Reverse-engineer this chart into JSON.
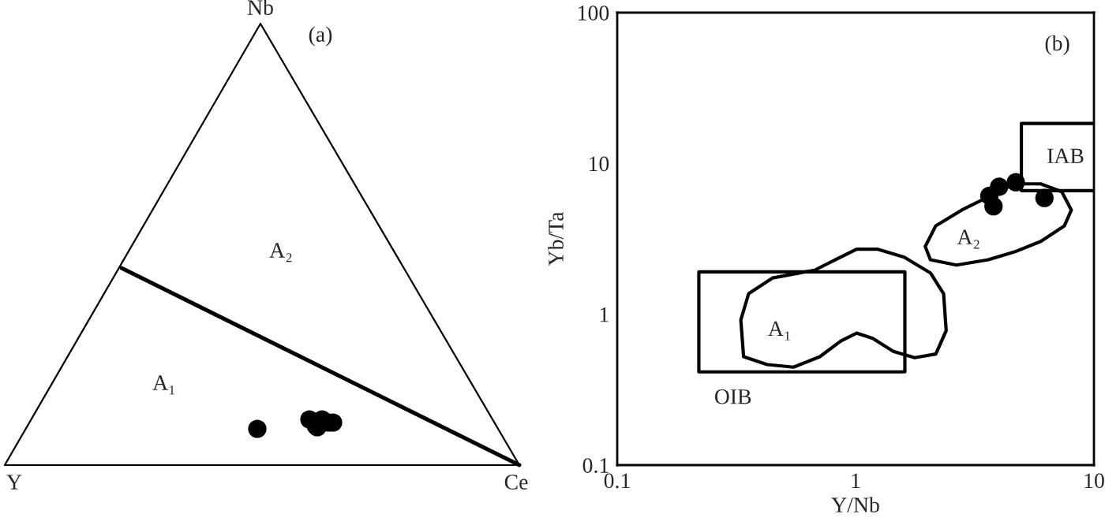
{
  "chart_data": [
    {
      "type": "other",
      "annotations": [
        "(a)",
        "Nb",
        "Y",
        "Ce",
        "A₂",
        "A₁"
      ]
    },
    {
      "type": "scatter",
      "xlabel": "Y/Nb",
      "ylabel": "Yb/Ta",
      "log": "xy",
      "xlim": [
        0.1,
        10
      ],
      "xticks": [
        0.1,
        1,
        10
      ],
      "ylim": [
        0.1,
        100
      ],
      "yticks": [
        0.1,
        1,
        10,
        100
      ],
      "annotations": [
        "(b)",
        "OIB",
        "IAB",
        "A₁",
        "A₂"
      ],
      "series": [
        {
          "type": "scatter",
          "color": "#000000",
          "marker": "circle",
          "x": [
            4.0,
            3.64,
            3.79,
            4.7,
            6.2
          ],
          "values": [
            7.0,
            6.1,
            5.2,
            7.5,
            5.9
          ]
        }
      ]
    }
  ]
}
